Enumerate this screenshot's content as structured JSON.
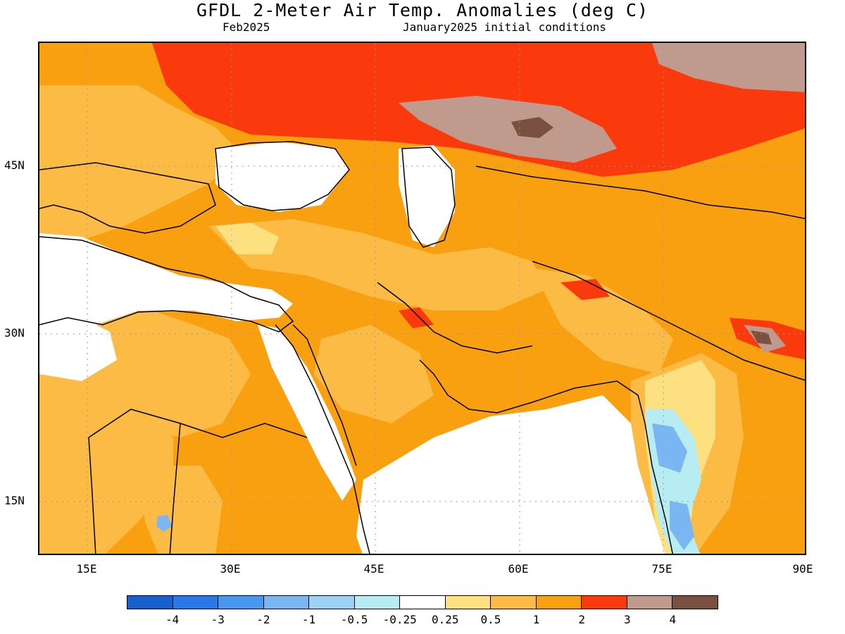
{
  "header": {
    "title": "GFDL 2-Meter Air Temp. Anomalies (deg C)",
    "valid_month": "Feb2025",
    "init_conditions": "January2025 initial conditions"
  },
  "axes": {
    "x_ticks": [
      "15E",
      "30E",
      "45E",
      "60E",
      "75E",
      "90E"
    ],
    "y_ticks": [
      "45N",
      "30N",
      "15N"
    ],
    "lon_range": [
      10,
      90
    ],
    "lat_range": [
      10,
      55
    ]
  },
  "colorbar": {
    "labels": [
      "-4",
      "-3",
      "-2",
      "-1",
      "-0.5",
      "-0.25",
      "0.25",
      "0.5",
      "1",
      "2",
      "3",
      "4"
    ],
    "colors": [
      "#1a5fcf",
      "#2a78e8",
      "#4a97ef",
      "#79b6f2",
      "#9ed1f6",
      "#b6ecf2",
      "#ffffff",
      "#fde080",
      "#fcbb44",
      "#f8a010",
      "#fa3a0c",
      "#c09a8c",
      "#7a5040"
    ]
  },
  "field_levels": {
    "warm_strong": "#fa3a0c",
    "warm": "#f8a010",
    "mild": "#fcbb44",
    "slight": "#fde080",
    "very_strong": "#c09a8c",
    "extreme": "#7a5040",
    "cool_slight": "#b6ecf2",
    "cool": "#79b6f2"
  }
}
